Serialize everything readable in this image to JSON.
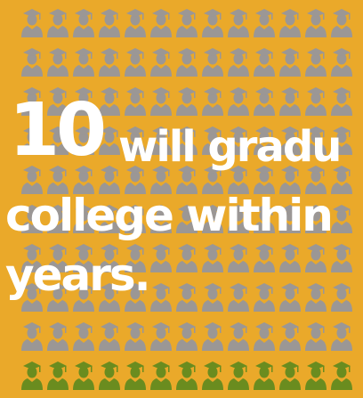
{
  "headline": {
    "number": "10",
    "line1_rest": "will gradu",
    "line2": "college within",
    "line3": "years."
  },
  "icon_grid": {
    "icon": "graduate-icon",
    "rows": 10,
    "cols": 13,
    "highlighted_rows": 1,
    "colors": {
      "background": "#eaa92a",
      "icon": "#9b9795",
      "highlight": "#6a8c1f"
    }
  }
}
